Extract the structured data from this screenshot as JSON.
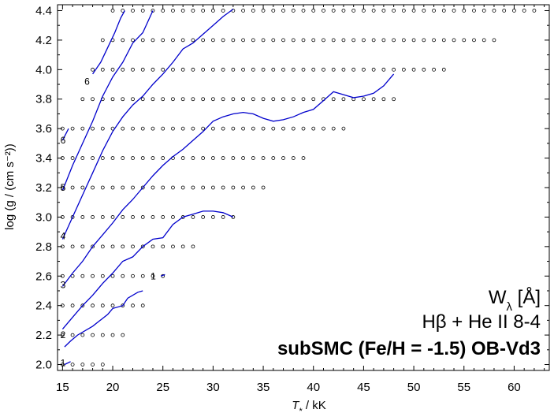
{
  "chart_data": {
    "type": "scatter",
    "xlabel_main": "T",
    "xlabel_sub": "*",
    "xlabel_unit": " / kK",
    "ylabel": "log (g / (cm s⁻²))",
    "xlim": [
      14.5,
      63.5
    ],
    "ylim": [
      1.96,
      4.44
    ],
    "xticks": [
      15,
      20,
      25,
      30,
      35,
      40,
      45,
      50,
      55,
      60
    ],
    "yticks": [
      2.0,
      2.2,
      2.4,
      2.6,
      2.8,
      3.0,
      3.2,
      3.4,
      3.6,
      3.8,
      4.0,
      4.2,
      4.4
    ],
    "grid": false,
    "annotations": {
      "line1": "W",
      "line1_sub": "λ",
      "line1_rest": "  [Å]",
      "line2": "Hβ + He II 8-4",
      "line3": "subSMC (Fe/H = -1.5) OB-Vd3"
    },
    "model_grid": [
      {
        "logg": 2.0,
        "t_min": 15,
        "t_max": 19
      },
      {
        "logg": 2.2,
        "t_min": 15,
        "t_max": 21
      },
      {
        "logg": 2.4,
        "t_min": 15,
        "t_max": 23
      },
      {
        "logg": 2.6,
        "t_min": 15,
        "t_max": 25
      },
      {
        "logg": 2.8,
        "t_min": 15,
        "t_max": 28
      },
      {
        "logg": 3.0,
        "t_min": 15,
        "t_max": 32
      },
      {
        "logg": 3.2,
        "t_min": 15,
        "t_max": 35
      },
      {
        "logg": 3.4,
        "t_min": 15,
        "t_max": 39
      },
      {
        "logg": 3.6,
        "t_min": 15,
        "t_max": 43
      },
      {
        "logg": 3.8,
        "t_min": 17,
        "t_max": 48
      },
      {
        "logg": 4.0,
        "t_min": 18,
        "t_max": 53
      },
      {
        "logg": 4.2,
        "t_min": 19,
        "t_max": 58
      },
      {
        "logg": 4.4,
        "t_min": 20,
        "t_max": 62
      }
    ],
    "contours": [
      {
        "label": "1",
        "label_at": [
          15.2,
          2.01
        ],
        "color": "#0000cc",
        "points": [
          [
            15.2,
            2.0
          ],
          [
            15.8,
            2.02
          ]
        ]
      },
      {
        "label": "1",
        "label_at": [
          24.2,
          2.6
        ],
        "color": "#0000cc",
        "points": [
          [
            24.8,
            2.6
          ],
          [
            25.2,
            2.61
          ]
        ]
      },
      {
        "label": "2",
        "label_at": [
          15.2,
          2.2
        ],
        "color": "#0000cc",
        "points": [
          [
            15.2,
            2.12
          ],
          [
            15.8,
            2.16
          ],
          [
            16.5,
            2.2
          ],
          [
            18,
            2.26
          ],
          [
            19.5,
            2.34
          ],
          [
            20,
            2.38
          ],
          [
            21,
            2.4
          ],
          [
            21.5,
            2.45
          ],
          [
            22.5,
            2.49
          ],
          [
            23,
            2.5
          ]
        ]
      },
      {
        "label": "3",
        "label_at": [
          15.2,
          2.54
        ],
        "color": "#0000cc",
        "points": [
          [
            15,
            2.24
          ],
          [
            16,
            2.32
          ],
          [
            17,
            2.4
          ],
          [
            18,
            2.47
          ],
          [
            19,
            2.55
          ],
          [
            20,
            2.62
          ],
          [
            21,
            2.7
          ],
          [
            22,
            2.73
          ],
          [
            23,
            2.8
          ],
          [
            24,
            2.85
          ],
          [
            25,
            2.86
          ],
          [
            26,
            2.95
          ],
          [
            27,
            3.0
          ],
          [
            28,
            3.02
          ],
          [
            29,
            3.04
          ],
          [
            30,
            3.04
          ],
          [
            31,
            3.03
          ],
          [
            32,
            3.0
          ]
        ]
      },
      {
        "label": "4",
        "label_at": [
          15.2,
          2.87
        ],
        "color": "#0000cc",
        "points": [
          [
            15,
            2.53
          ],
          [
            16,
            2.62
          ],
          [
            17,
            2.7
          ],
          [
            18,
            2.8
          ],
          [
            19,
            2.88
          ],
          [
            20,
            2.96
          ],
          [
            21,
            3.05
          ],
          [
            22,
            3.12
          ],
          [
            23,
            3.2
          ],
          [
            24,
            3.28
          ],
          [
            25,
            3.35
          ],
          [
            26,
            3.41
          ],
          [
            27,
            3.46
          ],
          [
            28,
            3.52
          ],
          [
            29,
            3.58
          ],
          [
            30,
            3.65
          ],
          [
            31,
            3.68
          ],
          [
            32,
            3.7
          ],
          [
            33,
            3.71
          ],
          [
            34,
            3.7
          ],
          [
            35,
            3.67
          ],
          [
            36,
            3.65
          ],
          [
            37,
            3.66
          ],
          [
            38,
            3.68
          ],
          [
            39,
            3.71
          ],
          [
            40,
            3.73
          ],
          [
            41,
            3.79
          ],
          [
            42,
            3.85
          ],
          [
            43,
            3.83
          ],
          [
            44,
            3.81
          ],
          [
            45,
            3.82
          ],
          [
            46,
            3.84
          ],
          [
            47,
            3.89
          ],
          [
            48,
            3.97
          ]
        ]
      },
      {
        "label": "5",
        "label_at": [
          15.2,
          3.2
        ],
        "color": "#0000cc",
        "points": [
          [
            15,
            2.85
          ],
          [
            16,
            3.0
          ],
          [
            17,
            3.15
          ],
          [
            18,
            3.3
          ],
          [
            19,
            3.45
          ],
          [
            20,
            3.58
          ],
          [
            21,
            3.68
          ],
          [
            22,
            3.76
          ],
          [
            23,
            3.82
          ],
          [
            24,
            3.9
          ],
          [
            25,
            3.97
          ],
          [
            26,
            4.05
          ],
          [
            27,
            4.14
          ],
          [
            28,
            4.18
          ],
          [
            29,
            4.24
          ],
          [
            30,
            4.3
          ],
          [
            31,
            4.36
          ],
          [
            32,
            4.41
          ]
        ]
      },
      {
        "label": "6",
        "label_at": [
          15.2,
          3.52
        ],
        "color": "#0000cc",
        "points": [
          [
            15,
            3.18
          ],
          [
            16,
            3.35
          ],
          [
            17,
            3.5
          ],
          [
            18,
            3.65
          ],
          [
            19,
            3.82
          ],
          [
            20,
            3.95
          ],
          [
            21,
            4.05
          ],
          [
            22,
            4.18
          ],
          [
            23,
            4.25
          ],
          [
            24,
            4.4
          ]
        ]
      },
      {
        "label": "6",
        "label_at": [
          17.6,
          3.92
        ],
        "color": "#0000cc",
        "points": [
          [
            18,
            3.97
          ],
          [
            18.8,
            4.05
          ],
          [
            19.5,
            4.15
          ],
          [
            20.2,
            4.25
          ],
          [
            20.8,
            4.35
          ],
          [
            21.2,
            4.4
          ]
        ]
      },
      {
        "label": "",
        "label_at": null,
        "color": "#0000cc",
        "points": [
          [
            15,
            3.52
          ],
          [
            15.3,
            3.56
          ],
          [
            15.6,
            3.6
          ]
        ]
      }
    ]
  }
}
